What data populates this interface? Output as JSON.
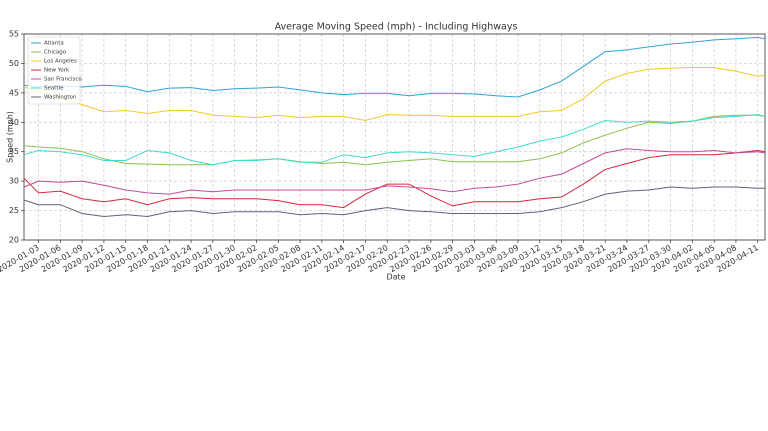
{
  "chart_data": {
    "type": "line",
    "title": "Average Moving Speed (mph) - Including Highways",
    "x_label": "Date",
    "y_label": "Speed (mph)",
    "x": [
      "2020-01-01",
      "2020-01-03",
      "2020-01-06",
      "2020-01-09",
      "2020-01-12",
      "2020-01-15",
      "2020-01-18",
      "2020-01-21",
      "2020-01-24",
      "2020-01-27",
      "2020-01-30",
      "2020-02-02",
      "2020-02-05",
      "2020-02-08",
      "2020-02-11",
      "2020-02-14",
      "2020-02-17",
      "2020-02-20",
      "2020-02-23",
      "2020-02-26",
      "2020-02-29",
      "2020-03-03",
      "2020-03-06",
      "2020-03-09",
      "2020-03-12",
      "2020-03-15",
      "2020-03-18",
      "2020-03-21",
      "2020-03-24",
      "2020-03-27",
      "2020-03-30",
      "2020-04-02",
      "2020-04-05",
      "2020-04-08",
      "2020-04-11",
      "2020-04-12"
    ],
    "xlim": [
      "2020-01-01",
      "2020-04-12"
    ],
    "xticks": [
      "2020-01-03",
      "2020-01-06",
      "2020-01-09",
      "2020-01-12",
      "2020-01-15",
      "2020-01-18",
      "2020-01-21",
      "2020-01-24",
      "2020-01-27",
      "2020-01-30",
      "2020-02-02",
      "2020-02-05",
      "2020-02-08",
      "2020-02-11",
      "2020-02-14",
      "2020-02-17",
      "2020-02-20",
      "2020-02-23",
      "2020-02-26",
      "2020-02-29",
      "2020-03-03",
      "2020-03-06",
      "2020-03-09",
      "2020-03-12",
      "2020-03-15",
      "2020-03-18",
      "2020-03-21",
      "2020-03-24",
      "2020-03-27",
      "2020-03-30",
      "2020-04-02",
      "2020-04-05",
      "2020-04-08",
      "2020-04-11"
    ],
    "ylim": [
      20,
      55
    ],
    "yticks": [
      20,
      25,
      30,
      35,
      40,
      45,
      50,
      55
    ],
    "grid": true,
    "legend": "upper left",
    "series": [
      {
        "name": "Atlanta",
        "color": "#2ea3d8",
        "values": [
          46.3,
          46.0,
          46.2,
          46.0,
          46.3,
          46.1,
          45.2,
          45.8,
          45.9,
          45.4,
          45.7,
          45.8,
          46.0,
          45.5,
          45.0,
          44.7,
          44.9,
          44.9,
          44.5,
          44.9,
          44.9,
          44.8,
          44.5,
          44.3,
          45.5,
          47.0,
          49.5,
          52.0,
          52.3,
          52.8,
          53.3,
          53.6,
          54.0,
          54.2,
          54.4,
          54.2
        ]
      },
      {
        "name": "Chicago",
        "color": "#8fbf4f",
        "values": [
          36.0,
          35.8,
          35.6,
          35.0,
          33.8,
          33.0,
          32.9,
          32.8,
          32.8,
          32.8,
          33.5,
          33.6,
          33.8,
          33.3,
          33.0,
          33.2,
          32.8,
          33.2,
          33.5,
          33.8,
          33.3,
          33.3,
          33.3,
          33.3,
          33.8,
          34.8,
          36.5,
          37.8,
          39.0,
          40.0,
          39.8,
          40.2,
          41.0,
          41.2,
          41.2,
          41.0
        ]
      },
      {
        "name": "Los Angeles",
        "color": "#f2c82e",
        "values": [
          46.0,
          45.3,
          44.3,
          43.0,
          41.8,
          42.0,
          41.5,
          42.0,
          42.0,
          41.2,
          41.0,
          40.8,
          41.2,
          40.8,
          41.0,
          41.0,
          40.3,
          41.3,
          41.2,
          41.2,
          41.0,
          41.0,
          41.0,
          41.0,
          41.8,
          42.0,
          44.0,
          47.0,
          48.3,
          49.0,
          49.2,
          49.3,
          49.3,
          48.7,
          47.8,
          48.0
        ]
      },
      {
        "name": "New York",
        "color": "#d62738",
        "values": [
          30.5,
          28.0,
          28.3,
          27.0,
          26.5,
          27.0,
          26.0,
          27.0,
          27.2,
          27.0,
          27.0,
          27.0,
          26.7,
          26.0,
          26.0,
          25.5,
          27.8,
          29.5,
          29.5,
          27.5,
          25.8,
          26.5,
          26.5,
          26.5,
          27.0,
          27.3,
          29.5,
          32.0,
          33.0,
          34.0,
          34.5,
          34.5,
          34.5,
          34.8,
          35.2,
          35.0
        ]
      },
      {
        "name": "San Francisco",
        "color": "#c44aa0",
        "values": [
          29.0,
          30.0,
          29.8,
          30.0,
          29.3,
          28.5,
          28.0,
          27.8,
          28.5,
          28.2,
          28.5,
          28.5,
          28.5,
          28.5,
          28.5,
          28.5,
          28.5,
          29.2,
          29.0,
          28.7,
          28.2,
          28.8,
          29.0,
          29.5,
          30.5,
          31.2,
          33.0,
          34.8,
          35.5,
          35.2,
          35.0,
          35.0,
          35.2,
          34.8,
          35.0,
          34.8
        ]
      },
      {
        "name": "Seattle",
        "color": "#3fdccc",
        "values": [
          34.5,
          35.2,
          35.0,
          34.5,
          33.5,
          33.5,
          35.2,
          34.8,
          33.5,
          32.8,
          33.5,
          33.5,
          33.8,
          33.2,
          33.2,
          34.5,
          34.0,
          34.8,
          35.0,
          34.8,
          34.5,
          34.2,
          35.0,
          35.8,
          36.8,
          37.5,
          38.8,
          40.3,
          40.0,
          40.2,
          40.0,
          40.2,
          40.8,
          41.0,
          41.3,
          41.0
        ]
      },
      {
        "name": "Washington",
        "color": "#5b6579",
        "values": [
          26.8,
          26.0,
          26.0,
          24.5,
          24.0,
          24.3,
          24.0,
          24.8,
          25.0,
          24.5,
          24.8,
          24.8,
          24.8,
          24.3,
          24.5,
          24.3,
          25.0,
          25.5,
          25.0,
          24.8,
          24.5,
          24.5,
          24.5,
          24.5,
          24.8,
          25.5,
          26.5,
          27.8,
          28.3,
          28.5,
          29.0,
          28.8,
          29.0,
          29.0,
          28.8,
          28.8
        ]
      }
    ]
  }
}
